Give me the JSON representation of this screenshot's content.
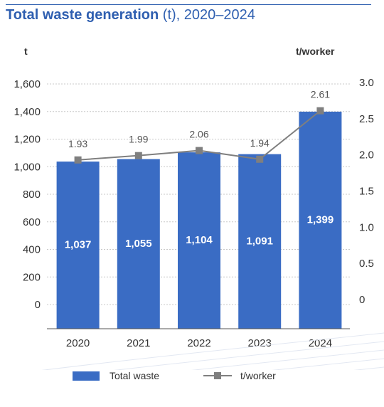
{
  "title": {
    "bold": "Total waste generation",
    "rest": " (t), 2020–2024"
  },
  "chart_data": {
    "type": "bar",
    "categories": [
      "2020",
      "2021",
      "2022",
      "2023",
      "2024"
    ],
    "series": [
      {
        "name": "Total waste",
        "type": "bar",
        "axis": "left",
        "values": [
          1037,
          1055,
          1104,
          1091,
          1399
        ],
        "labels": [
          "1,037",
          "1,055",
          "1,104",
          "1,091",
          "1,399"
        ],
        "color": "#3a6cc4"
      },
      {
        "name": "t/worker",
        "type": "line",
        "axis": "right",
        "values": [
          1.93,
          1.99,
          2.06,
          1.94,
          2.61
        ],
        "labels": [
          "1.93",
          "1.99",
          "2.06",
          "1.94",
          "2.61"
        ],
        "color": "#7f7f7f"
      }
    ],
    "yleft": {
      "label": "t",
      "ticks": [
        0,
        200,
        400,
        600,
        800,
        1000,
        1200,
        1400,
        1600
      ],
      "tick_labels": [
        "0",
        "200",
        "400",
        "600",
        "800",
        "1,000",
        "1,200",
        "1,400",
        "1,600"
      ]
    },
    "yright": {
      "label": "t/worker",
      "ticks": [
        0,
        0.5,
        1.0,
        1.5,
        2.0,
        2.5,
        3.0
      ],
      "tick_labels": [
        "0",
        "0.5",
        "1.0",
        "1.5",
        "2.0",
        "2.5",
        "3.0"
      ]
    },
    "grid": true,
    "legend": "bottom"
  }
}
